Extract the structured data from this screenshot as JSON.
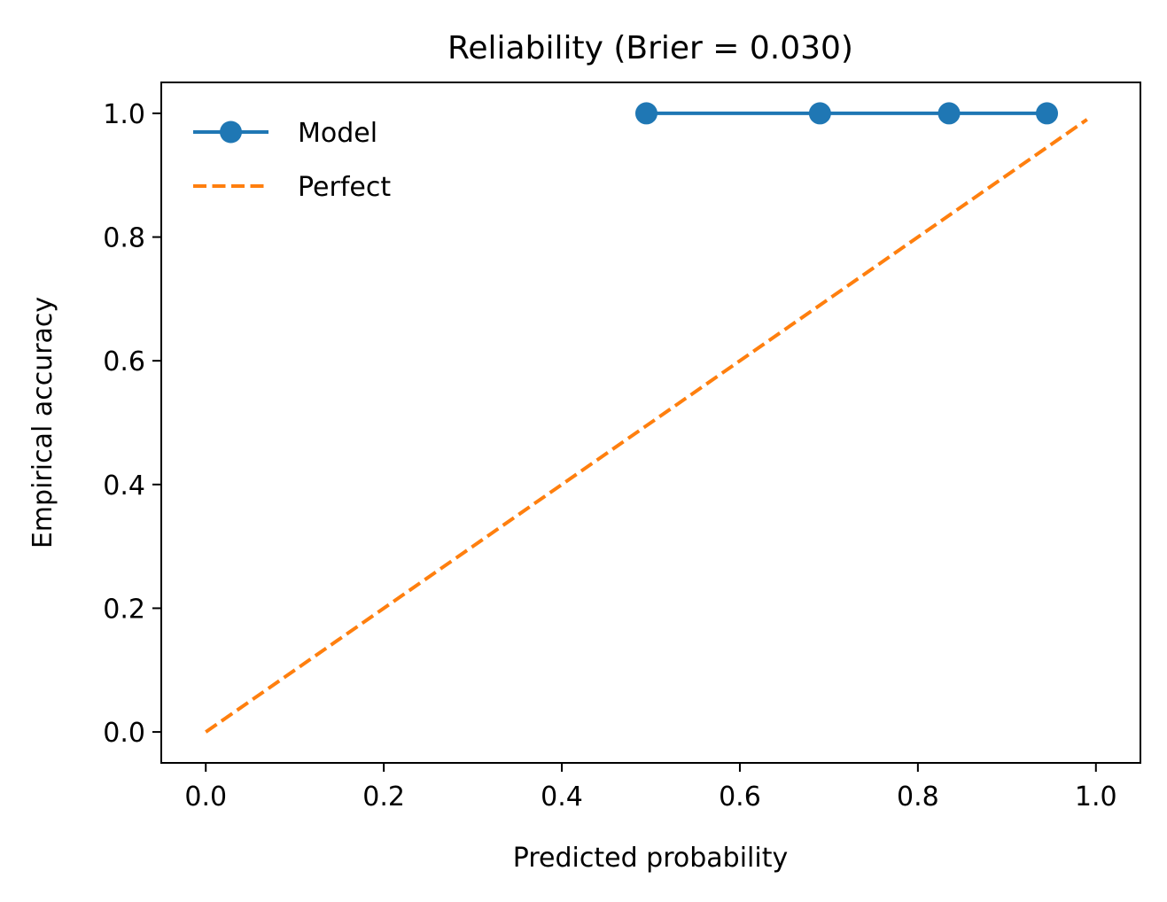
{
  "chart_data": {
    "type": "line",
    "title": "Reliability (Brier = 0.030)",
    "xlabel": "Predicted probability",
    "ylabel": "Empirical accuracy",
    "xlim": [
      -0.05,
      1.05
    ],
    "ylim": [
      -0.05,
      1.05
    ],
    "xticks": [
      "0.0",
      "0.2",
      "0.4",
      "0.6",
      "0.8",
      "1.0"
    ],
    "yticks": [
      "0.0",
      "0.2",
      "0.4",
      "0.6",
      "0.8",
      "1.0"
    ],
    "grid": false,
    "legend_position": "top-left",
    "series": [
      {
        "name": "Model",
        "style": "line-with-markers",
        "color": "#1f77b4",
        "x": [
          0.495,
          0.69,
          0.835,
          0.945
        ],
        "y": [
          1.0,
          1.0,
          1.0,
          1.0
        ]
      },
      {
        "name": "Perfect",
        "style": "dashed",
        "color": "#ff7f0e",
        "x": [
          0.0,
          0.99
        ],
        "y": [
          0.0,
          0.99
        ]
      }
    ]
  }
}
